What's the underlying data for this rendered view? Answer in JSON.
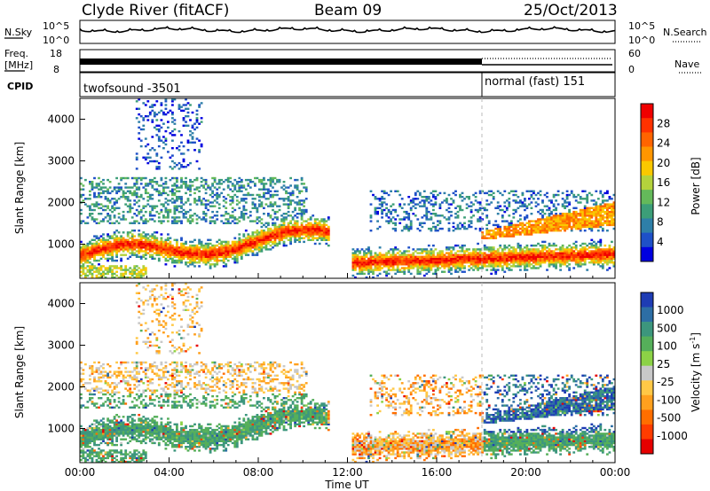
{
  "header": {
    "station": "Clyde River (fitACF)",
    "beam": "Beam 09",
    "date": "25/Oct/2013"
  },
  "panels": {
    "nsky_label": "N.Sky",
    "nsearch_label": "N.Search",
    "freq_label_line1": "Freq.",
    "freq_label_line2": "[MHz]",
    "nave_label": "Nave",
    "cpid_label": "CPID",
    "cpid_left": "twofsound -3501",
    "cpid_right": "normal (fast) 151"
  },
  "axes": {
    "ylabel": "Slant Range [km]",
    "xlabel": "Time UT",
    "power_label": "Power [dB]",
    "velocity_label": "Velocity [m s",
    "velocity_label_exp": "-1",
    "velocity_label_close": "]"
  },
  "chart_data": [
    {
      "type": "line",
      "name": "noise-panel",
      "yticks_left": [
        "10^5",
        "10^0"
      ],
      "yticks_right": [
        "10^5",
        "10^0"
      ]
    },
    {
      "type": "line",
      "name": "freq-nave-panel",
      "yticks_left": [
        "18",
        "8"
      ],
      "yticks_right": [
        "60",
        "0"
      ],
      "freq_mhz": 10.5,
      "cpid_switch_hour": 18
    },
    {
      "type": "heatmap",
      "name": "power",
      "x_range_hours": [
        0,
        24
      ],
      "y_range_km": [
        180,
        4500
      ],
      "xticks": [
        "00:00",
        "04:00",
        "08:00",
        "12:00",
        "16:00",
        "20:00",
        "00:00"
      ],
      "yticks": [
        "1000",
        "2000",
        "3000",
        "4000"
      ],
      "colorbar_ticks": [
        "4",
        "8",
        "12",
        "16",
        "20",
        "24",
        "28"
      ],
      "colorbar_colors": [
        "#0000e0",
        "#1e50c8",
        "#2e7fa8",
        "#3c9e78",
        "#64b95a",
        "#b4d23c",
        "#fac800",
        "#ff9600",
        "#ff6400",
        "#ff3200",
        "#f00000"
      ]
    },
    {
      "type": "heatmap",
      "name": "velocity",
      "x_range_hours": [
        0,
        24
      ],
      "y_range_km": [
        180,
        4500
      ],
      "xticks": [
        "00:00",
        "04:00",
        "08:00",
        "12:00",
        "16:00",
        "20:00",
        "00:00"
      ],
      "yticks": [
        "1000",
        "2000",
        "3000",
        "4000"
      ],
      "colorbar_ticks": [
        "1000",
        "500",
        "100",
        "25",
        "-25",
        "-100",
        "-500",
        "-1000"
      ],
      "colorbar_colors": [
        "#1e3cb4",
        "#2d6ea5",
        "#3c967d",
        "#55af5a",
        "#8cd246",
        "#c8c8c8",
        "#ffc846",
        "#ffa01e",
        "#ff6e00",
        "#ff3c00",
        "#e60000"
      ]
    }
  ]
}
